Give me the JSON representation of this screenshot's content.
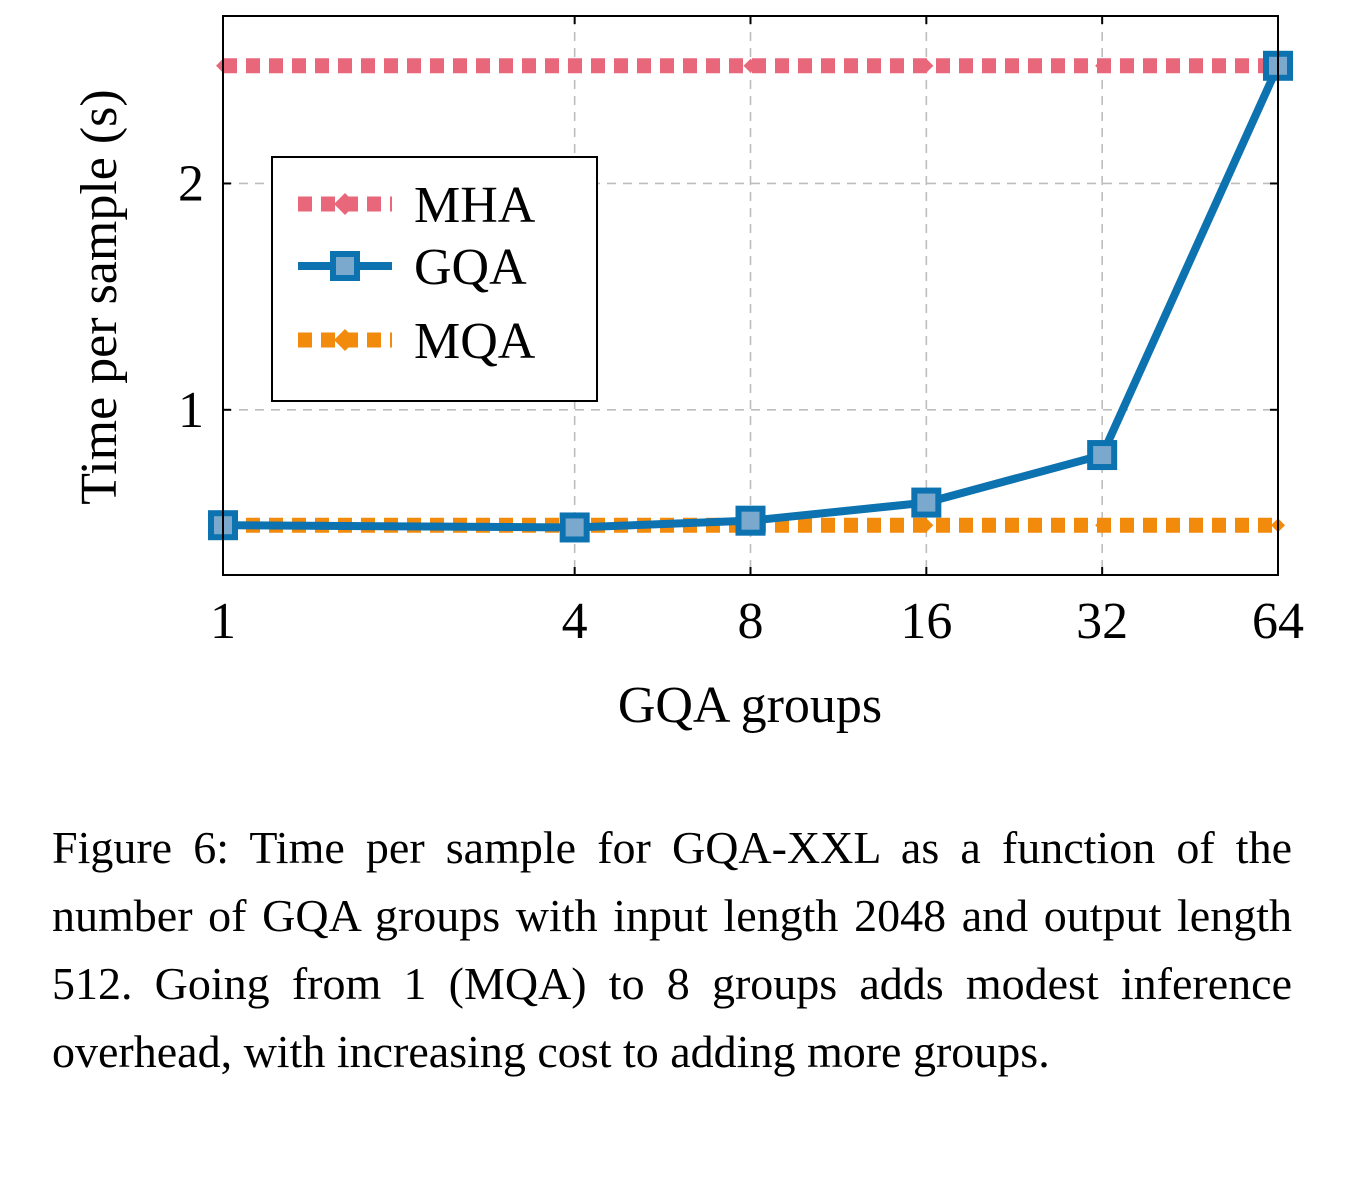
{
  "chart_data": {
    "type": "line",
    "x": [
      1,
      4,
      8,
      16,
      32,
      64
    ],
    "x_tick_labels": [
      "1",
      "4",
      "8",
      "16",
      "32",
      "64"
    ],
    "x_scale": "log2",
    "xlabel": "GQA groups",
    "ylabel": "Time per sample (s)",
    "y_ticks": [
      1,
      2
    ],
    "y_tick_labels": [
      "1",
      "2"
    ],
    "ylim": [
      0.27,
      2.74
    ],
    "grid": true,
    "legend_position": "top-left",
    "series": [
      {
        "name": "MHA",
        "values": [
          2.52,
          2.52,
          2.52,
          2.52,
          2.52,
          2.52
        ],
        "color": "#e8677a",
        "style": "dotted",
        "marker": "diamond"
      },
      {
        "name": "GQA",
        "values": [
          0.49,
          0.48,
          0.51,
          0.59,
          0.8,
          2.52
        ],
        "color": "#0c72b0",
        "style": "solid",
        "marker": "square"
      },
      {
        "name": "MQA",
        "values": [
          0.49,
          0.49,
          0.49,
          0.49,
          0.49,
          0.49
        ],
        "color": "#f28a0c",
        "style": "dotted",
        "marker": "diamond"
      }
    ]
  },
  "caption": "Figure 6: Time per sample for GQA-XXL as a function of the number of GQA groups with input length 2048 and output length 512.  Going from 1 (MQA) to 8 groups adds modest inference overhead, with increasing cost to adding more groups."
}
